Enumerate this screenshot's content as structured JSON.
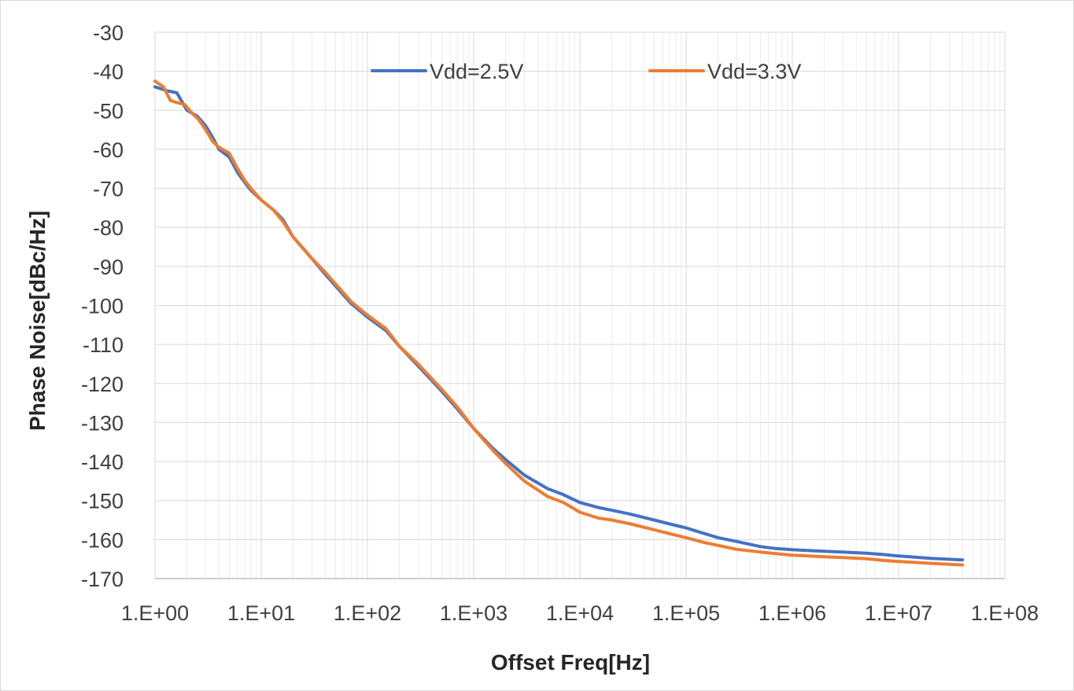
{
  "chart_data": {
    "type": "line",
    "title": "",
    "xlabel": "Offset Freq[Hz]",
    "ylabel": "Phase Noise[dBc/Hz]",
    "x_scale": "log",
    "xlim": [
      1,
      100000000
    ],
    "ylim": [
      -170,
      -30
    ],
    "x_ticks": [
      1,
      10,
      100,
      1000,
      10000,
      100000,
      1000000,
      10000000,
      100000000
    ],
    "x_tick_labels": [
      "1.E+00",
      "1.E+01",
      "1.E+02",
      "1.E+03",
      "1.E+04",
      "1.E+05",
      "1.E+06",
      "1.E+07",
      "1.E+08"
    ],
    "y_ticks": [
      -30,
      -40,
      -50,
      -60,
      -70,
      -80,
      -90,
      -100,
      -110,
      -120,
      -130,
      -140,
      -150,
      -160,
      -170
    ],
    "y_tick_labels": [
      "-30",
      "-40",
      "-50",
      "-60",
      "-70",
      "-80",
      "-90",
      "-100",
      "-110",
      "-120",
      "-130",
      "-140",
      "-150",
      "-160",
      "-170"
    ],
    "grid": true,
    "minor_grid_x": true,
    "legend_position": "top",
    "series": [
      {
        "name": "Vdd=2.5V",
        "color": "#4472c4",
        "x": [
          1,
          1.3,
          1.6,
          2,
          2.5,
          3,
          3.5,
          4,
          5,
          6,
          7,
          8,
          10,
          13,
          16,
          20,
          25,
          30,
          40,
          50,
          70,
          100,
          150,
          200,
          300,
          500,
          700,
          1000,
          1500,
          2000,
          3000,
          5000,
          7000,
          10000,
          15000,
          20000,
          30000,
          50000,
          70000,
          100000,
          150000,
          200000,
          300000,
          500000,
          700000,
          1000000,
          2000000,
          3000000,
          5000000,
          7000000,
          10000000,
          20000000,
          40000000
        ],
        "y": [
          -44,
          -45,
          -45.5,
          -50,
          -51.5,
          -54,
          -57,
          -60,
          -62,
          -66,
          -68.5,
          -70.5,
          -73,
          -75.5,
          -78,
          -82.5,
          -85.5,
          -88,
          -92,
          -95,
          -99.5,
          -103,
          -106.5,
          -110.5,
          -115.5,
          -122,
          -126.5,
          -131.5,
          -136.5,
          -139.5,
          -143.5,
          -147,
          -148.5,
          -150.5,
          -151.8,
          -152.5,
          -153.5,
          -155,
          -156,
          -157,
          -158.5,
          -159.5,
          -160.5,
          -161.8,
          -162.3,
          -162.6,
          -163,
          -163.2,
          -163.5,
          -163.8,
          -164.2,
          -164.8,
          -165.2
        ]
      },
      {
        "name": "Vdd=3.3V",
        "color": "#ed7d31",
        "x": [
          1,
          1.2,
          1.4,
          1.6,
          1.9,
          2.2,
          2.6,
          3,
          3.5,
          4,
          5,
          6,
          7,
          8,
          10,
          13,
          16,
          20,
          25,
          30,
          40,
          50,
          70,
          100,
          150,
          200,
          300,
          500,
          700,
          1000,
          1500,
          2000,
          3000,
          5000,
          7000,
          10000,
          15000,
          20000,
          30000,
          50000,
          70000,
          100000,
          150000,
          200000,
          300000,
          500000,
          700000,
          1000000,
          2000000,
          3000000,
          5000000,
          7000000,
          10000000,
          20000000,
          40000000
        ],
        "y": [
          -42.5,
          -44,
          -47.5,
          -48,
          -48.5,
          -50.5,
          -52.5,
          -55,
          -58,
          -59.5,
          -61,
          -65,
          -68,
          -70,
          -73,
          -75.5,
          -78.5,
          -82.5,
          -85.5,
          -88,
          -91.5,
          -94.5,
          -99,
          -102.5,
          -106,
          -110.5,
          -115,
          -121.5,
          -126,
          -131.5,
          -137,
          -140.5,
          -145,
          -149,
          -150.5,
          -153,
          -154.5,
          -155,
          -156,
          -157.5,
          -158.5,
          -159.5,
          -160.8,
          -161.5,
          -162.5,
          -163.2,
          -163.6,
          -164,
          -164.4,
          -164.6,
          -164.9,
          -165.3,
          -165.6,
          -166.1,
          -166.5
        ]
      }
    ]
  }
}
